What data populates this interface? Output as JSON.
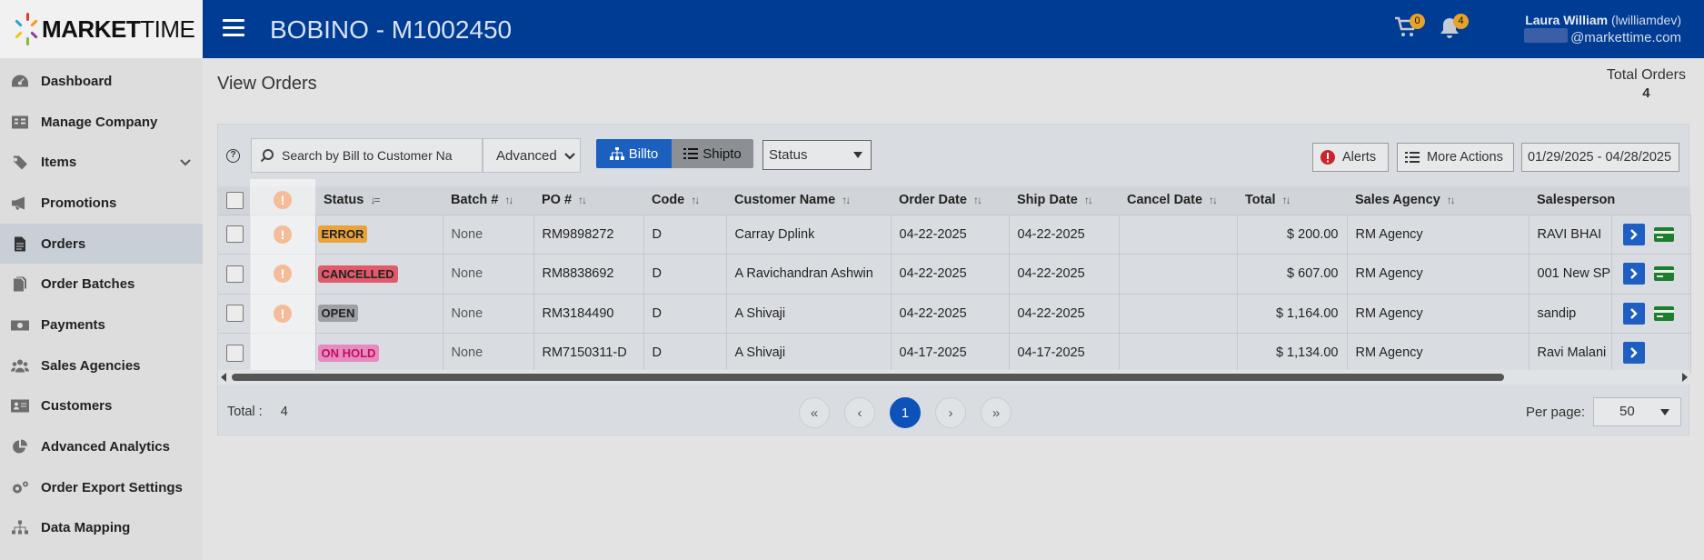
{
  "logo": {
    "brand_bold": "MARKET",
    "brand_light": "TIME"
  },
  "header": {
    "title": "BOBINO - M1002450",
    "cart_count": "0",
    "notification_count": "4",
    "user_name": "Laura William",
    "user_handle": "(lwilliamdev)",
    "user_email": "@markettime.com"
  },
  "sidebar": {
    "items": [
      {
        "label": "Dashboard",
        "icon": "dashboard-icon"
      },
      {
        "label": "Manage Company",
        "icon": "company-icon"
      },
      {
        "label": "Items",
        "icon": "tags-icon"
      },
      {
        "label": "Promotions",
        "icon": "megaphone-icon"
      },
      {
        "label": "Orders",
        "icon": "orders-icon"
      },
      {
        "label": "Order Batches",
        "icon": "batches-icon"
      },
      {
        "label": "Payments",
        "icon": "payments-icon"
      },
      {
        "label": "Sales Agencies",
        "icon": "agencies-icon"
      },
      {
        "label": "Customers",
        "icon": "customers-icon"
      },
      {
        "label": "Advanced Analytics",
        "icon": "analytics-icon"
      },
      {
        "label": "Order Export Settings",
        "icon": "gears-icon"
      },
      {
        "label": "Data Mapping",
        "icon": "sitemap-icon"
      }
    ]
  },
  "main": {
    "page_title": "View Orders",
    "total_orders_label": "Total Orders",
    "total_orders_value": "4"
  },
  "toolbar": {
    "help": "?",
    "search_placeholder": "Search by Bill to Customer Na",
    "advanced_label": "Advanced",
    "billto_label": "Billto",
    "shipto_label": "Shipto",
    "status_label": "Status",
    "alerts_label": "Alerts",
    "more_actions_label": "More Actions",
    "date_range": "01/29/2025 - 04/28/2025"
  },
  "table": {
    "columns": [
      "Status",
      "Batch #",
      "PO #",
      "Code",
      "Customer Name",
      "Order Date",
      "Ship Date",
      "Cancel Date",
      "Total",
      "Sales Agency",
      "Salesperson"
    ],
    "rows": [
      {
        "alert": true,
        "status": "ERROR",
        "status_color": "#e8a33a",
        "batch": "None",
        "po": "RM9898272",
        "code": "D",
        "customer": "Carray Dplink",
        "order_date": "04-22-2025",
        "ship_date": "04-22-2025",
        "cancel_date": "",
        "total": "$ 200.00",
        "agency": "RM Agency",
        "salesperson": "RAVI BHAI",
        "card": true
      },
      {
        "alert": true,
        "status": "CANCELLED",
        "status_color": "#e05a6b",
        "batch": "None",
        "po": "RM8838692",
        "code": "D",
        "customer": "A Ravichandran Ashwin",
        "order_date": "04-22-2025",
        "ship_date": "04-22-2025",
        "cancel_date": "",
        "total": "$ 607.00",
        "agency": "RM Agency",
        "salesperson": "001 New SP",
        "card": true
      },
      {
        "alert": true,
        "status": "OPEN",
        "status_color": "#9da1a5",
        "batch": "None",
        "po": "RM3184490",
        "code": "D",
        "customer": "A Shivaji",
        "order_date": "04-22-2025",
        "ship_date": "04-22-2025",
        "cancel_date": "",
        "total": "$ 1,164.00",
        "agency": "RM Agency",
        "salesperson": "sandip",
        "card": true
      },
      {
        "alert": false,
        "status": "ON HOLD",
        "status_color": "#e88ac0",
        "batch": "None",
        "po": "RM7150311-D",
        "code": "D",
        "customer": "A Shivaji",
        "order_date": "04-17-2025",
        "ship_date": "04-17-2025",
        "cancel_date": "",
        "total": "$ 1,134.00",
        "agency": "RM Agency",
        "salesperson": "Ravi Malani",
        "card": false
      }
    ]
  },
  "footer": {
    "total_label": "Total :",
    "total_value": "4",
    "pages": [
      "«",
      "‹",
      "1",
      "›",
      "»"
    ],
    "current_page": "1",
    "per_page_label": "Per page:",
    "per_page_value": "50"
  },
  "colors": {
    "topbar": "#003b94",
    "accent": "#1b5fbf",
    "alert": "#e76b1b"
  }
}
